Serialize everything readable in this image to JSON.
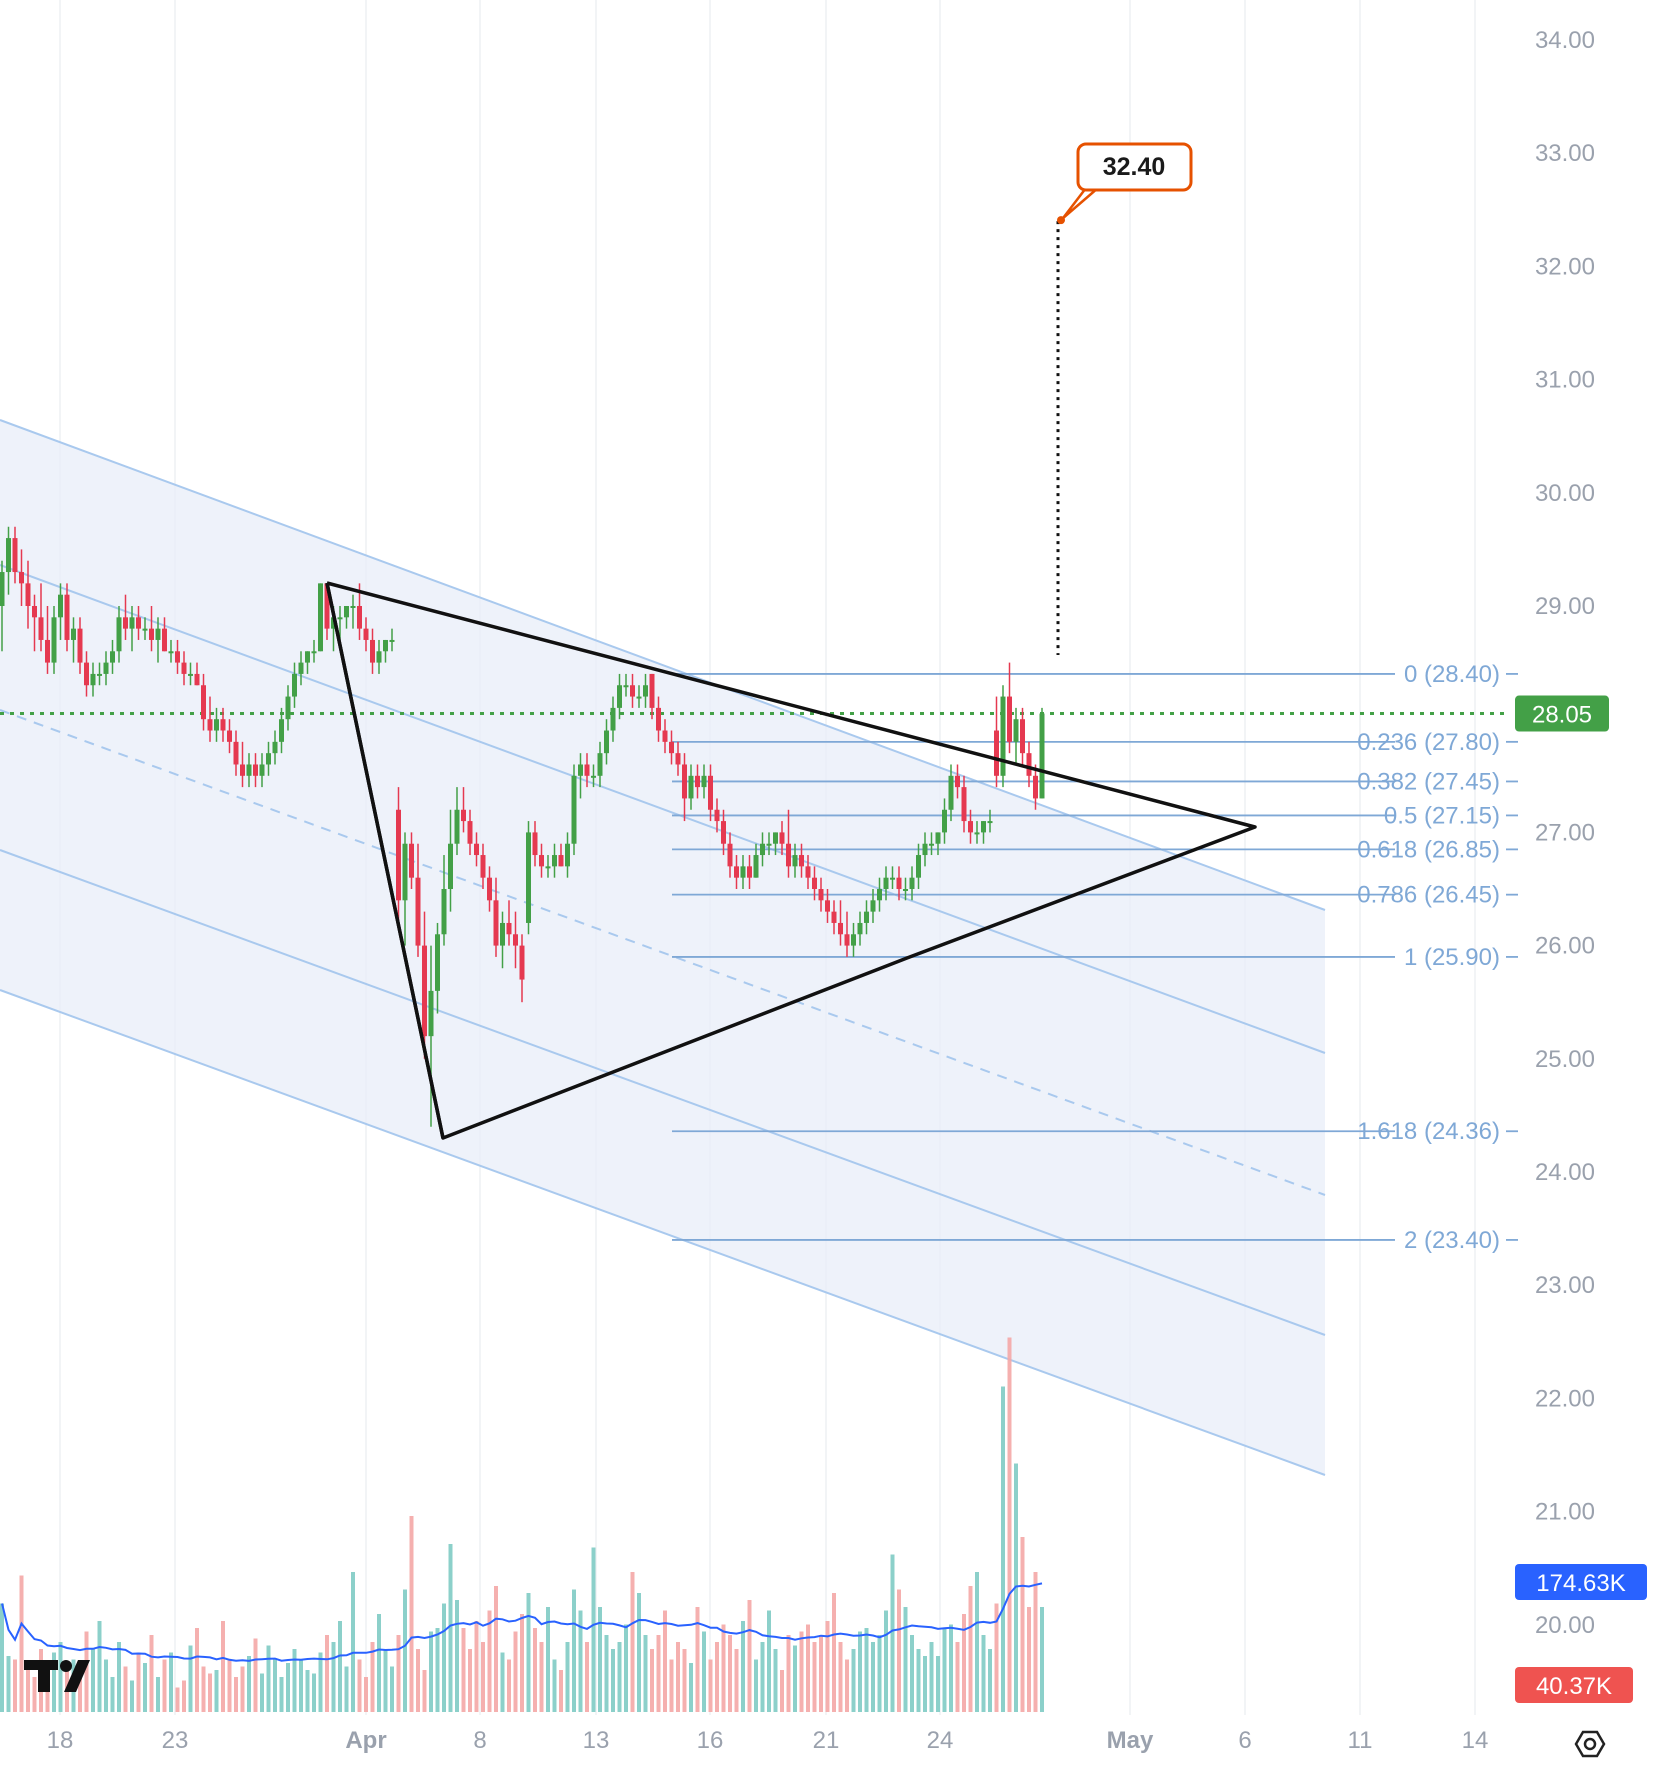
{
  "chart_data": {
    "type": "candlestick",
    "y_axis": {
      "ticks": [
        "34.00",
        "33.00",
        "32.00",
        "31.00",
        "30.00",
        "29.00",
        "27.00",
        "26.00",
        "25.00",
        "24.00",
        "23.00",
        "22.00",
        "21.00",
        "20.00"
      ],
      "range": [
        19.2,
        34.3
      ]
    },
    "x_axis": {
      "ticks": [
        "18",
        "23",
        "Apr",
        "8",
        "13",
        "16",
        "21",
        "24",
        "May",
        "6",
        "11",
        "14"
      ]
    },
    "current_price": {
      "label": "28.05",
      "value": 28.05,
      "color": "#43a047"
    },
    "target": {
      "label": "32.40",
      "value": 32.4,
      "color": "#e65100"
    },
    "fibonacci": [
      {
        "ratio": "0",
        "price": "28.40",
        "label": "0 (28.40)"
      },
      {
        "ratio": "0.236",
        "price": "27.80",
        "label": "0.236 (27.80)"
      },
      {
        "ratio": "0.382",
        "price": "27.45",
        "label": "0.382 (27.45)"
      },
      {
        "ratio": "0.5",
        "price": "27.15",
        "label": "0.5 (27.15)"
      },
      {
        "ratio": "0.618",
        "price": "26.85",
        "label": "0.618 (26.85)"
      },
      {
        "ratio": "0.786",
        "price": "26.45",
        "label": "0.786 (26.45)"
      },
      {
        "ratio": "1",
        "price": "25.90",
        "label": "1 (25.90)"
      },
      {
        "ratio": "1.618",
        "price": "24.36",
        "label": "1.618 (24.36)"
      },
      {
        "ratio": "2",
        "price": "23.40",
        "label": "2 (23.40)"
      }
    ],
    "volume": {
      "ma_label": "174.63K",
      "ma_color": "#2962ff",
      "last_label": "40.37K",
      "last_color": "#ef5350",
      "bars": [
        62,
        32,
        30,
        78,
        28,
        20,
        36,
        18,
        34,
        40,
        24,
        30,
        28,
        46,
        36,
        52,
        30,
        20,
        40,
        26,
        18,
        34,
        28,
        44,
        20,
        30,
        34,
        14,
        18,
        38,
        48,
        26,
        22,
        24,
        52,
        30,
        20,
        26,
        32,
        42,
        22,
        38,
        30,
        20,
        28,
        36,
        30,
        24,
        22,
        34,
        44,
        40,
        52,
        26,
        80,
        30,
        20,
        40,
        56,
        36,
        26,
        44,
        70,
        112,
        36,
        24,
        46,
        48,
        62,
        96,
        64,
        48,
        36,
        52,
        40,
        58,
        72,
        34,
        30,
        46,
        56,
        68,
        48,
        40,
        60,
        30,
        24,
        40,
        70,
        58,
        40,
        94,
        60,
        44,
        36,
        40,
        50,
        80,
        68,
        44,
        36,
        44,
        58,
        30,
        40,
        36,
        28,
        60,
        46,
        30,
        40,
        50,
        44,
        36,
        52,
        64,
        30,
        40,
        58,
        36,
        24,
        44,
        38,
        46,
        50,
        40,
        44,
        52,
        68,
        40,
        30,
        36,
        46,
        48,
        40,
        44,
        58,
        90,
        70,
        60,
        44,
        36,
        32,
        40,
        32,
        48,
        50,
        40,
        56,
        72,
        80,
        44,
        36,
        62,
        186,
        214,
        142,
        100,
        60,
        80,
        60,
        48,
        40
      ]
    },
    "candles": [
      {
        "o": 29.0,
        "h": 29.4,
        "l": 28.6,
        "c": 29.3
      },
      {
        "o": 29.3,
        "h": 29.7,
        "l": 29.1,
        "c": 29.6
      },
      {
        "o": 29.6,
        "h": 29.7,
        "l": 29.2,
        "c": 29.3
      },
      {
        "o": 29.3,
        "h": 29.5,
        "l": 29.0,
        "c": 29.2
      },
      {
        "o": 29.2,
        "h": 29.4,
        "l": 28.8,
        "c": 29.0
      },
      {
        "o": 29.0,
        "h": 29.1,
        "l": 28.6,
        "c": 28.9
      },
      {
        "o": 28.9,
        "h": 29.2,
        "l": 28.6,
        "c": 28.7
      },
      {
        "o": 28.7,
        "h": 29.0,
        "l": 28.4,
        "c": 28.5
      },
      {
        "o": 28.5,
        "h": 29.0,
        "l": 28.4,
        "c": 28.9
      },
      {
        "o": 28.9,
        "h": 29.2,
        "l": 28.7,
        "c": 29.1
      },
      {
        "o": 29.1,
        "h": 29.2,
        "l": 28.6,
        "c": 28.7
      },
      {
        "o": 28.7,
        "h": 28.9,
        "l": 28.5,
        "c": 28.8
      },
      {
        "o": 28.8,
        "h": 28.9,
        "l": 28.4,
        "c": 28.5
      },
      {
        "o": 28.5,
        "h": 28.6,
        "l": 28.2,
        "c": 28.3
      },
      {
        "o": 28.3,
        "h": 28.5,
        "l": 28.2,
        "c": 28.4
      },
      {
        "o": 28.4,
        "h": 28.5,
        "l": 28.3,
        "c": 28.4
      },
      {
        "o": 28.4,
        "h": 28.6,
        "l": 28.3,
        "c": 28.5
      },
      {
        "o": 28.5,
        "h": 28.7,
        "l": 28.4,
        "c": 28.6
      },
      {
        "o": 28.6,
        "h": 29.0,
        "l": 28.5,
        "c": 28.9
      },
      {
        "o": 28.9,
        "h": 29.1,
        "l": 28.7,
        "c": 28.8
      },
      {
        "o": 28.8,
        "h": 29.0,
        "l": 28.6,
        "c": 28.9
      },
      {
        "o": 28.9,
        "h": 29.0,
        "l": 28.7,
        "c": 28.8
      },
      {
        "o": 28.8,
        "h": 28.9,
        "l": 28.7,
        "c": 28.8
      },
      {
        "o": 28.8,
        "h": 29.0,
        "l": 28.6,
        "c": 28.7
      },
      {
        "o": 28.7,
        "h": 28.9,
        "l": 28.5,
        "c": 28.8
      },
      {
        "o": 28.8,
        "h": 28.9,
        "l": 28.6,
        "c": 28.6
      },
      {
        "o": 28.6,
        "h": 28.7,
        "l": 28.5,
        "c": 28.6
      },
      {
        "o": 28.6,
        "h": 28.7,
        "l": 28.4,
        "c": 28.5
      },
      {
        "o": 28.5,
        "h": 28.6,
        "l": 28.3,
        "c": 28.4
      },
      {
        "o": 28.4,
        "h": 28.5,
        "l": 28.3,
        "c": 28.4
      },
      {
        "o": 28.4,
        "h": 28.5,
        "l": 28.3,
        "c": 28.3
      },
      {
        "o": 28.3,
        "h": 28.4,
        "l": 27.9,
        "c": 28.0
      },
      {
        "o": 28.0,
        "h": 28.2,
        "l": 27.8,
        "c": 27.9
      },
      {
        "o": 27.9,
        "h": 28.1,
        "l": 27.8,
        "c": 28.0
      },
      {
        "o": 28.0,
        "h": 28.1,
        "l": 27.8,
        "c": 27.9
      },
      {
        "o": 27.9,
        "h": 28.0,
        "l": 27.7,
        "c": 27.8
      },
      {
        "o": 27.8,
        "h": 27.9,
        "l": 27.5,
        "c": 27.6
      },
      {
        "o": 27.6,
        "h": 27.8,
        "l": 27.4,
        "c": 27.5
      },
      {
        "o": 27.5,
        "h": 27.7,
        "l": 27.4,
        "c": 27.6
      },
      {
        "o": 27.6,
        "h": 27.7,
        "l": 27.4,
        "c": 27.5
      },
      {
        "o": 27.5,
        "h": 27.7,
        "l": 27.4,
        "c": 27.6
      },
      {
        "o": 27.6,
        "h": 27.8,
        "l": 27.5,
        "c": 27.7
      },
      {
        "o": 27.7,
        "h": 27.9,
        "l": 27.6,
        "c": 27.8
      },
      {
        "o": 27.8,
        "h": 28.1,
        "l": 27.7,
        "c": 28.0
      },
      {
        "o": 28.0,
        "h": 28.3,
        "l": 27.9,
        "c": 28.2
      },
      {
        "o": 28.2,
        "h": 28.5,
        "l": 28.1,
        "c": 28.4
      },
      {
        "o": 28.4,
        "h": 28.6,
        "l": 28.3,
        "c": 28.5
      },
      {
        "o": 28.5,
        "h": 28.6,
        "l": 28.4,
        "c": 28.6
      },
      {
        "o": 28.6,
        "h": 28.7,
        "l": 28.5,
        "c": 28.6
      },
      {
        "o": 28.6,
        "h": 29.2,
        "l": 28.6,
        "c": 29.2
      },
      {
        "o": 29.2,
        "h": 29.2,
        "l": 28.7,
        "c": 28.8
      },
      {
        "o": 28.8,
        "h": 29.0,
        "l": 28.6,
        "c": 28.9
      },
      {
        "o": 28.9,
        "h": 29.0,
        "l": 28.7,
        "c": 28.9
      },
      {
        "o": 28.9,
        "h": 29.0,
        "l": 28.8,
        "c": 29.0
      },
      {
        "o": 29.0,
        "h": 29.1,
        "l": 28.8,
        "c": 29.0
      },
      {
        "o": 29.0,
        "h": 29.2,
        "l": 28.7,
        "c": 28.8
      },
      {
        "o": 28.8,
        "h": 28.9,
        "l": 28.6,
        "c": 28.7
      },
      {
        "o": 28.7,
        "h": 28.8,
        "l": 28.4,
        "c": 28.5
      },
      {
        "o": 28.5,
        "h": 28.7,
        "l": 28.4,
        "c": 28.6
      },
      {
        "o": 28.6,
        "h": 28.7,
        "l": 28.5,
        "c": 28.7
      },
      {
        "o": 28.7,
        "h": 28.8,
        "l": 28.6,
        "c": 28.7
      },
      {
        "o": 27.2,
        "h": 27.4,
        "l": 26.2,
        "c": 26.4
      },
      {
        "o": 26.4,
        "h": 27.0,
        "l": 26.0,
        "c": 26.9
      },
      {
        "o": 26.9,
        "h": 27.0,
        "l": 26.5,
        "c": 26.6
      },
      {
        "o": 26.6,
        "h": 26.9,
        "l": 25.9,
        "c": 26.0
      },
      {
        "o": 26.0,
        "h": 26.3,
        "l": 25.0,
        "c": 25.2
      },
      {
        "o": 25.2,
        "h": 26.0,
        "l": 24.4,
        "c": 25.6
      },
      {
        "o": 25.6,
        "h": 26.2,
        "l": 25.4,
        "c": 26.1
      },
      {
        "o": 26.1,
        "h": 26.8,
        "l": 26.0,
        "c": 26.5
      },
      {
        "o": 26.5,
        "h": 27.2,
        "l": 26.3,
        "c": 26.9
      },
      {
        "o": 26.9,
        "h": 27.4,
        "l": 26.8,
        "c": 27.2
      },
      {
        "o": 27.2,
        "h": 27.4,
        "l": 27.0,
        "c": 27.1
      },
      {
        "o": 27.1,
        "h": 27.2,
        "l": 26.8,
        "c": 26.9
      },
      {
        "o": 26.9,
        "h": 27.0,
        "l": 26.7,
        "c": 26.8
      },
      {
        "o": 26.8,
        "h": 26.9,
        "l": 26.5,
        "c": 26.6
      },
      {
        "o": 26.6,
        "h": 26.7,
        "l": 26.3,
        "c": 26.4
      },
      {
        "o": 26.4,
        "h": 26.6,
        "l": 25.9,
        "c": 26.0
      },
      {
        "o": 26.0,
        "h": 26.3,
        "l": 25.8,
        "c": 26.2
      },
      {
        "o": 26.2,
        "h": 26.4,
        "l": 26.0,
        "c": 26.1
      },
      {
        "o": 26.1,
        "h": 26.3,
        "l": 25.8,
        "c": 26.0
      },
      {
        "o": 26.0,
        "h": 26.1,
        "l": 25.5,
        "c": 25.7
      },
      {
        "o": 26.2,
        "h": 27.1,
        "l": 26.1,
        "c": 27.0
      },
      {
        "o": 27.0,
        "h": 27.1,
        "l": 26.7,
        "c": 26.8
      },
      {
        "o": 26.8,
        "h": 26.9,
        "l": 26.6,
        "c": 26.7
      },
      {
        "o": 26.7,
        "h": 26.8,
        "l": 26.6,
        "c": 26.7
      },
      {
        "o": 26.7,
        "h": 26.9,
        "l": 26.6,
        "c": 26.8
      },
      {
        "o": 26.8,
        "h": 26.9,
        "l": 26.7,
        "c": 26.7
      },
      {
        "o": 26.7,
        "h": 27.0,
        "l": 26.6,
        "c": 26.9
      },
      {
        "o": 26.9,
        "h": 27.6,
        "l": 26.8,
        "c": 27.5
      },
      {
        "o": 27.5,
        "h": 27.7,
        "l": 27.3,
        "c": 27.6
      },
      {
        "o": 27.6,
        "h": 27.7,
        "l": 27.4,
        "c": 27.5
      },
      {
        "o": 27.5,
        "h": 27.6,
        "l": 27.4,
        "c": 27.5
      },
      {
        "o": 27.5,
        "h": 27.8,
        "l": 27.4,
        "c": 27.7
      },
      {
        "o": 27.7,
        "h": 28.0,
        "l": 27.6,
        "c": 27.9
      },
      {
        "o": 27.9,
        "h": 28.2,
        "l": 27.8,
        "c": 28.1
      },
      {
        "o": 28.1,
        "h": 28.4,
        "l": 28.0,
        "c": 28.3
      },
      {
        "o": 28.3,
        "h": 28.4,
        "l": 28.2,
        "c": 28.3
      },
      {
        "o": 28.3,
        "h": 28.4,
        "l": 28.1,
        "c": 28.2
      },
      {
        "o": 28.2,
        "h": 28.3,
        "l": 28.1,
        "c": 28.2
      },
      {
        "o": 28.2,
        "h": 28.4,
        "l": 28.1,
        "c": 28.3
      },
      {
        "o": 28.4,
        "h": 28.4,
        "l": 28.0,
        "c": 28.1
      },
      {
        "o": 28.1,
        "h": 28.2,
        "l": 27.8,
        "c": 27.9
      },
      {
        "o": 27.9,
        "h": 28.0,
        "l": 27.7,
        "c": 27.8
      },
      {
        "o": 27.8,
        "h": 27.9,
        "l": 27.6,
        "c": 27.7
      },
      {
        "o": 27.7,
        "h": 27.8,
        "l": 27.5,
        "c": 27.6
      },
      {
        "o": 27.6,
        "h": 27.7,
        "l": 27.1,
        "c": 27.3
      },
      {
        "o": 27.3,
        "h": 27.6,
        "l": 27.2,
        "c": 27.5
      },
      {
        "o": 27.5,
        "h": 27.6,
        "l": 27.3,
        "c": 27.4
      },
      {
        "o": 27.4,
        "h": 27.6,
        "l": 27.3,
        "c": 27.5
      },
      {
        "o": 27.5,
        "h": 27.6,
        "l": 27.1,
        "c": 27.2
      },
      {
        "o": 27.2,
        "h": 27.3,
        "l": 27.0,
        "c": 27.1
      },
      {
        "o": 27.1,
        "h": 27.2,
        "l": 26.8,
        "c": 26.9
      },
      {
        "o": 26.9,
        "h": 27.0,
        "l": 26.6,
        "c": 26.7
      },
      {
        "o": 26.7,
        "h": 26.8,
        "l": 26.5,
        "c": 26.6
      },
      {
        "o": 26.6,
        "h": 26.8,
        "l": 26.5,
        "c": 26.7
      },
      {
        "o": 26.7,
        "h": 26.8,
        "l": 26.5,
        "c": 26.6
      },
      {
        "o": 26.6,
        "h": 26.9,
        "l": 26.6,
        "c": 26.8
      },
      {
        "o": 26.8,
        "h": 27.0,
        "l": 26.7,
        "c": 26.9
      },
      {
        "o": 26.9,
        "h": 27.0,
        "l": 26.8,
        "c": 26.9
      },
      {
        "o": 26.9,
        "h": 27.0,
        "l": 26.8,
        "c": 27.0
      },
      {
        "o": 27.0,
        "h": 27.1,
        "l": 26.8,
        "c": 26.9
      },
      {
        "o": 26.9,
        "h": 27.2,
        "l": 26.6,
        "c": 26.7
      },
      {
        "o": 26.7,
        "h": 26.9,
        "l": 26.6,
        "c": 26.8
      },
      {
        "o": 26.8,
        "h": 26.9,
        "l": 26.6,
        "c": 26.7
      },
      {
        "o": 26.7,
        "h": 26.8,
        "l": 26.5,
        "c": 26.6
      },
      {
        "o": 26.6,
        "h": 26.7,
        "l": 26.4,
        "c": 26.5
      },
      {
        "o": 26.5,
        "h": 26.6,
        "l": 26.3,
        "c": 26.4
      },
      {
        "o": 26.4,
        "h": 26.5,
        "l": 26.2,
        "c": 26.3
      },
      {
        "o": 26.3,
        "h": 26.4,
        "l": 26.1,
        "c": 26.2
      },
      {
        "o": 26.2,
        "h": 26.4,
        "l": 26.0,
        "c": 26.1
      },
      {
        "o": 26.1,
        "h": 26.3,
        "l": 25.9,
        "c": 26.0
      },
      {
        "o": 26.0,
        "h": 26.2,
        "l": 25.9,
        "c": 26.1
      },
      {
        "o": 26.1,
        "h": 26.3,
        "l": 26.0,
        "c": 26.2
      },
      {
        "o": 26.2,
        "h": 26.4,
        "l": 26.1,
        "c": 26.3
      },
      {
        "o": 26.3,
        "h": 26.5,
        "l": 26.2,
        "c": 26.4
      },
      {
        "o": 26.4,
        "h": 26.6,
        "l": 26.3,
        "c": 26.5
      },
      {
        "o": 26.5,
        "h": 26.7,
        "l": 26.4,
        "c": 26.6
      },
      {
        "o": 26.6,
        "h": 26.7,
        "l": 26.5,
        "c": 26.6
      },
      {
        "o": 26.6,
        "h": 26.7,
        "l": 26.4,
        "c": 26.5
      },
      {
        "o": 26.5,
        "h": 26.6,
        "l": 26.4,
        "c": 26.5
      },
      {
        "o": 26.5,
        "h": 26.7,
        "l": 26.4,
        "c": 26.6
      },
      {
        "o": 26.6,
        "h": 26.9,
        "l": 26.5,
        "c": 26.8
      },
      {
        "o": 26.8,
        "h": 27.0,
        "l": 26.7,
        "c": 26.9
      },
      {
        "o": 26.9,
        "h": 27.0,
        "l": 26.8,
        "c": 26.9
      },
      {
        "o": 26.9,
        "h": 27.0,
        "l": 26.8,
        "c": 27.0
      },
      {
        "o": 27.0,
        "h": 27.3,
        "l": 26.9,
        "c": 27.2
      },
      {
        "o": 27.2,
        "h": 27.6,
        "l": 27.1,
        "c": 27.5
      },
      {
        "o": 27.5,
        "h": 27.6,
        "l": 27.3,
        "c": 27.4
      },
      {
        "o": 27.4,
        "h": 27.5,
        "l": 27.0,
        "c": 27.1
      },
      {
        "o": 27.1,
        "h": 27.2,
        "l": 26.9,
        "c": 27.0
      },
      {
        "o": 27.0,
        "h": 27.1,
        "l": 26.9,
        "c": 27.0
      },
      {
        "o": 27.0,
        "h": 27.1,
        "l": 26.9,
        "c": 27.1
      },
      {
        "o": 27.1,
        "h": 27.2,
        "l": 27.0,
        "c": 27.1
      },
      {
        "o": 27.9,
        "h": 28.2,
        "l": 27.4,
        "c": 27.5
      },
      {
        "o": 27.5,
        "h": 28.3,
        "l": 27.4,
        "c": 28.2
      },
      {
        "o": 28.2,
        "h": 28.5,
        "l": 27.7,
        "c": 27.8
      },
      {
        "o": 27.8,
        "h": 28.1,
        "l": 27.6,
        "c": 28.0
      },
      {
        "o": 28.0,
        "h": 28.1,
        "l": 27.6,
        "c": 27.7
      },
      {
        "o": 27.7,
        "h": 27.8,
        "l": 27.4,
        "c": 27.5
      },
      {
        "o": 27.5,
        "h": 27.6,
        "l": 27.2,
        "c": 27.3
      },
      {
        "o": 27.3,
        "h": 28.1,
        "l": 27.3,
        "c": 28.05
      }
    ]
  }
}
